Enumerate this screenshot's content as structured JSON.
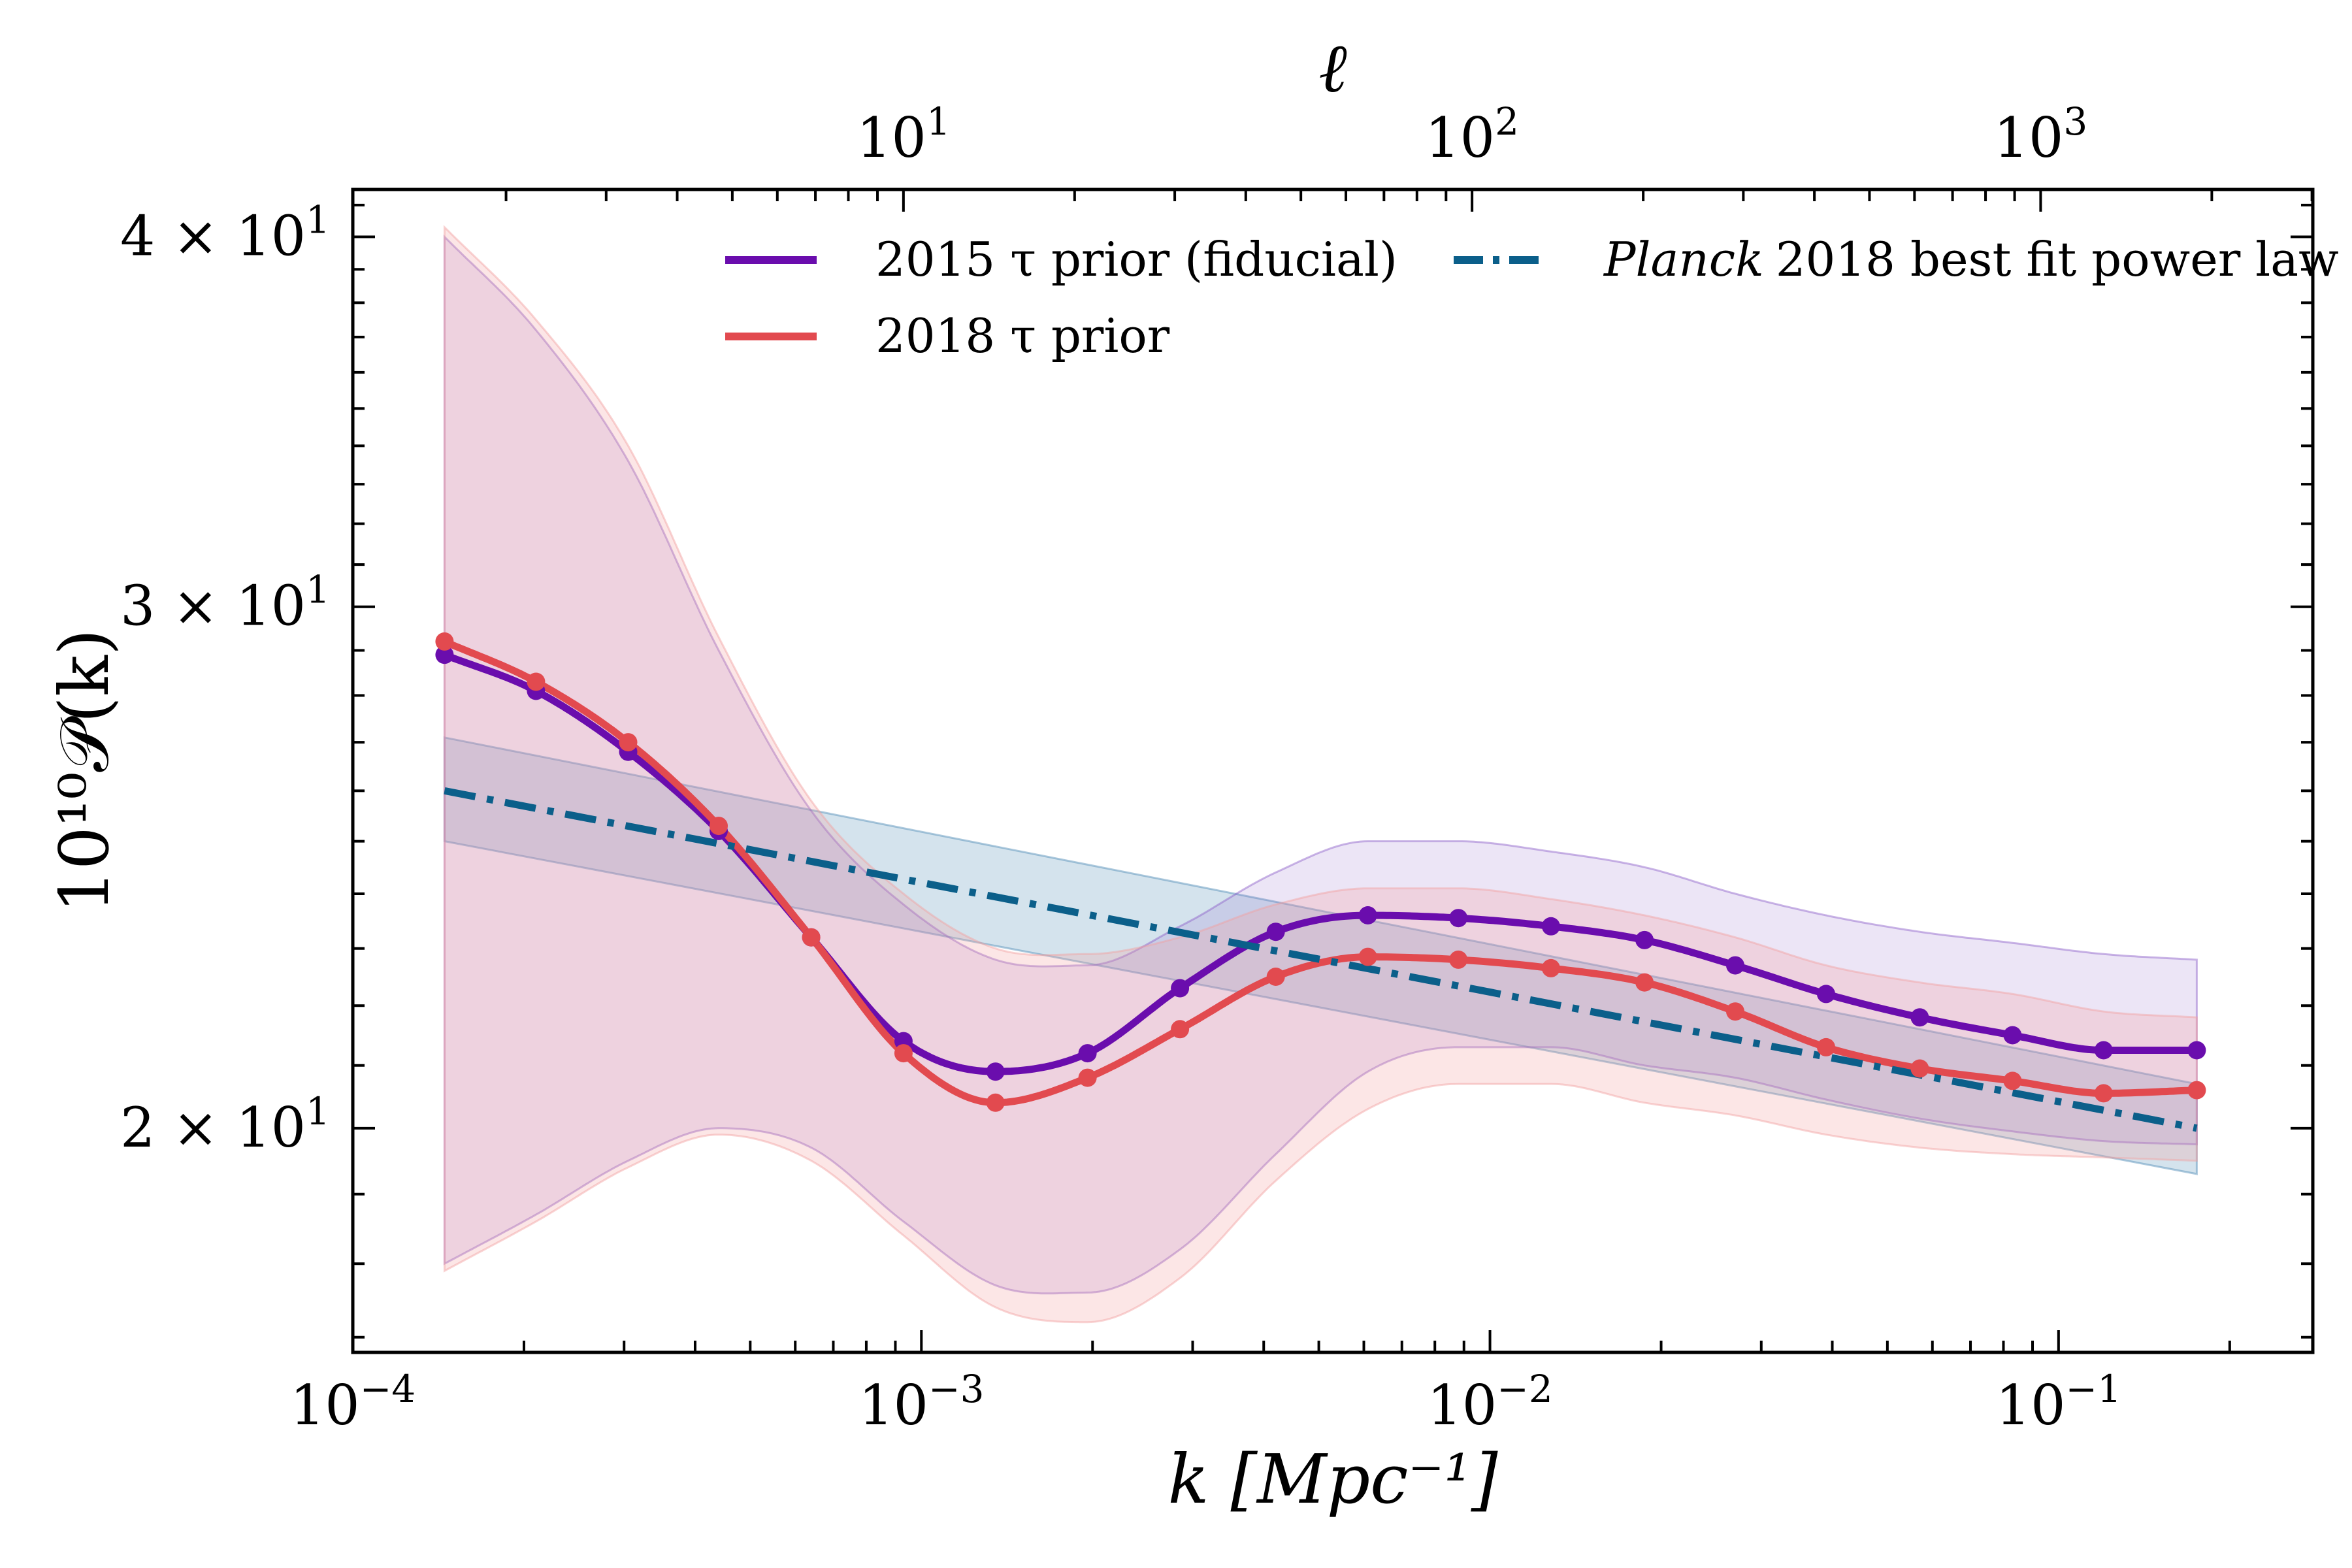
{
  "chart_data": {
    "type": "line",
    "xscale": "log",
    "yscale": "log",
    "xlim": [
      0.0001,
      0.28
    ],
    "ylim": [
      16.8,
      41.5
    ],
    "xlabel": "k [Mpc⁻¹]",
    "ylabel": "10¹⁰𝒫(k)",
    "top_xlabel": "ℓ",
    "x_ticks": [
      {
        "value": 0.0001,
        "base": "10",
        "exp": "−4"
      },
      {
        "value": 0.001,
        "base": "10",
        "exp": "−3"
      },
      {
        "value": 0.01,
        "base": "10",
        "exp": "−2"
      },
      {
        "value": 0.1,
        "base": "10",
        "exp": "−1"
      }
    ],
    "y_ticks": [
      {
        "value": 20,
        "text": "2 × 10",
        "exp": "1"
      },
      {
        "value": 30,
        "text": "3 × 10",
        "exp": "1"
      },
      {
        "value": 40,
        "text": "4 × 10",
        "exp": "1"
      }
    ],
    "top_ticks": [
      {
        "k": 0.00093,
        "base": "10",
        "exp": "1"
      },
      {
        "k": 0.0093,
        "base": "10",
        "exp": "2"
      },
      {
        "k": 0.093,
        "base": "10",
        "exp": "3"
      }
    ],
    "grid": false,
    "legend_position": "top",
    "series": [
      {
        "name": "2015 τ prior (fiducial)",
        "color": "#6a0dad",
        "style": "solid-with-markers",
        "x": [
          0.000145,
          0.00021,
          0.000305,
          0.00044,
          0.00064,
          0.00093,
          0.00135,
          0.00196,
          0.00285,
          0.0042,
          0.0061,
          0.0088,
          0.0128,
          0.0187,
          0.027,
          0.039,
          0.057,
          0.083,
          0.12,
          0.175
        ],
        "y": [
          28.9,
          28.1,
          26.8,
          25.2,
          23.2,
          21.4,
          20.9,
          21.2,
          22.3,
          23.3,
          23.6,
          23.55,
          23.4,
          23.15,
          22.7,
          22.2,
          21.8,
          21.5,
          21.25,
          21.25
        ],
        "band_lower": [
          18.0,
          18.7,
          19.5,
          20.0,
          19.7,
          18.6,
          17.7,
          17.6,
          18.2,
          19.6,
          20.9,
          21.3,
          21.3,
          21.0,
          20.8,
          20.45,
          20.15,
          19.95,
          19.8,
          19.75
        ],
        "band_upper": [
          40.0,
          37.2,
          33.6,
          29.0,
          25.6,
          23.8,
          22.8,
          22.7,
          23.4,
          24.4,
          25.0,
          25.0,
          24.8,
          24.5,
          24.0,
          23.6,
          23.3,
          23.1,
          22.9,
          22.8
        ]
      },
      {
        "name": "2018 τ prior",
        "color": "#e24a4f",
        "style": "solid-with-markers",
        "x": [
          0.000145,
          0.00021,
          0.000305,
          0.00044,
          0.00064,
          0.00093,
          0.00135,
          0.00196,
          0.00285,
          0.0042,
          0.0061,
          0.0088,
          0.0128,
          0.0187,
          0.027,
          0.039,
          0.057,
          0.083,
          0.12,
          0.175
        ],
        "y": [
          29.2,
          28.3,
          27.0,
          25.3,
          23.2,
          21.2,
          20.4,
          20.8,
          21.6,
          22.5,
          22.85,
          22.8,
          22.65,
          22.4,
          21.9,
          21.3,
          20.95,
          20.75,
          20.55,
          20.6
        ],
        "band_lower": [
          17.9,
          18.6,
          19.4,
          19.9,
          19.5,
          18.4,
          17.4,
          17.2,
          17.8,
          19.2,
          20.3,
          20.7,
          20.7,
          20.4,
          20.2,
          19.9,
          19.7,
          19.6,
          19.55,
          19.5
        ],
        "band_upper": [
          40.3,
          37.5,
          34.0,
          29.3,
          25.8,
          24.0,
          23.0,
          22.9,
          23.2,
          23.8,
          24.1,
          24.1,
          23.9,
          23.6,
          23.2,
          22.7,
          22.4,
          22.2,
          21.9,
          21.8
        ]
      },
      {
        "name": "Planck 2018 best fit power law",
        "name_italic": "Planck",
        "name_rest": "2018 best fit power law",
        "color": "#0b5f8a",
        "style": "dashdot",
        "x": [
          0.000145,
          0.175
        ],
        "y": [
          26.0,
          20.0
        ],
        "band_lower": [
          25.0,
          19.3
        ],
        "band_upper": [
          27.1,
          20.7
        ]
      }
    ]
  }
}
